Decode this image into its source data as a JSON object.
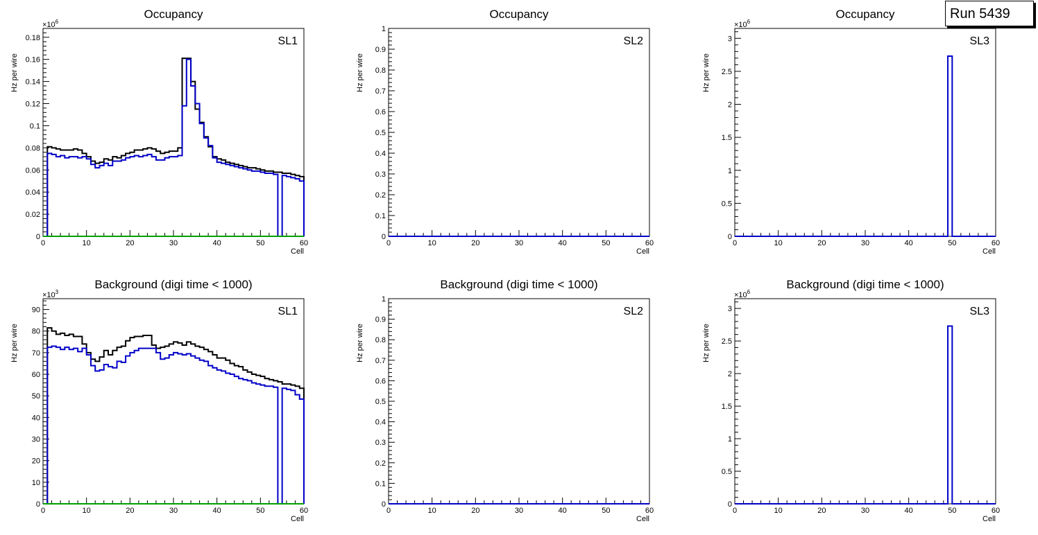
{
  "run_label": "Run 5439",
  "colors": {
    "frame": "#000000",
    "series_total": "#000000",
    "series_blue": "#0000c8",
    "series_green": "#00a000"
  },
  "chart_data": [
    {
      "id": "occ-sl1",
      "type": "step",
      "title": "Occupancy",
      "label": "SL1",
      "xlabel": "Cell",
      "ylabel": "Hz per wire",
      "exponent": "6",
      "xlim": [
        0,
        60
      ],
      "ylim": [
        0,
        0.188
      ],
      "xticks": [
        0,
        10,
        20,
        30,
        40,
        50,
        60
      ],
      "yticks": [
        0,
        0.02,
        0.04,
        0.06,
        0.08,
        0.1,
        0.12,
        0.14,
        0.16,
        0.18
      ],
      "ytick_labels": [
        "0",
        "0.02",
        "0.04",
        "0.06",
        "0.08",
        "0.1",
        "0.12",
        "0.14",
        "0.16",
        "0.18"
      ],
      "bin_width": 1,
      "series": [
        {
          "name": "total",
          "color": "#000000",
          "values": [
            0,
            0.081,
            0.08,
            0.079,
            0.078,
            0.078,
            0.078,
            0.079,
            0.078,
            0.075,
            0.072,
            0.068,
            0.066,
            0.067,
            0.07,
            0.069,
            0.072,
            0.071,
            0.073,
            0.075,
            0.076,
            0.078,
            0.078,
            0.079,
            0.08,
            0.079,
            0.077,
            0.075,
            0.076,
            0.077,
            0.077,
            0.08,
            0.161,
            0.161,
            0.14,
            0.115,
            0.103,
            0.09,
            0.081,
            0.072,
            0.07,
            0.069,
            0.067,
            0.066,
            0.065,
            0.064,
            0.063,
            0.062,
            0.062,
            0.061,
            0.06,
            0.059,
            0.059,
            0.058,
            0.058,
            0.057,
            0.057,
            0.056,
            0.055,
            0.054
          ]
        },
        {
          "name": "blue",
          "color": "#0000c8",
          "values": [
            0,
            0.075,
            0.074,
            0.072,
            0.073,
            0.071,
            0.072,
            0.072,
            0.071,
            0.072,
            0.07,
            0.065,
            0.062,
            0.064,
            0.066,
            0.064,
            0.068,
            0.068,
            0.069,
            0.071,
            0.072,
            0.073,
            0.072,
            0.073,
            0.074,
            0.072,
            0.069,
            0.069,
            0.071,
            0.072,
            0.072,
            0.073,
            0.118,
            0.16,
            0.136,
            0.12,
            0.102,
            0.089,
            0.082,
            0.071,
            0.067,
            0.066,
            0.065,
            0.064,
            0.063,
            0.062,
            0.061,
            0.06,
            0.059,
            0.059,
            0.058,
            0.057,
            0.057,
            0.056,
            0.0,
            0.055,
            0.054,
            0.053,
            0.052,
            0.05
          ]
        },
        {
          "name": "green",
          "color": "#00a000",
          "values": "zeros"
        }
      ]
    },
    {
      "id": "occ-sl2",
      "type": "step",
      "title": "Occupancy",
      "label": "SL2",
      "xlabel": "Cell",
      "ylabel": "Hz per wire",
      "exponent": "",
      "xlim": [
        0,
        60
      ],
      "ylim": [
        0,
        1.0
      ],
      "xticks": [
        0,
        10,
        20,
        30,
        40,
        50,
        60
      ],
      "yticks": [
        0,
        0.1,
        0.2,
        0.3,
        0.4,
        0.5,
        0.6,
        0.7,
        0.8,
        0.9,
        1
      ],
      "ytick_labels": [
        "0",
        "0.1",
        "0.2",
        "0.3",
        "0.4",
        "0.5",
        "0.6",
        "0.7",
        "0.8",
        "0.9",
        "1"
      ],
      "bin_width": 1,
      "series": [
        {
          "name": "blue",
          "color": "#0000c8",
          "values": "zeros"
        }
      ]
    },
    {
      "id": "occ-sl3",
      "type": "step",
      "title": "Occupancy",
      "label": "SL3",
      "xlabel": "Cell",
      "ylabel": "Hz per wire",
      "exponent": "6",
      "xlim": [
        0,
        60
      ],
      "ylim": [
        0,
        3.15
      ],
      "xticks": [
        0,
        10,
        20,
        30,
        40,
        50,
        60
      ],
      "yticks": [
        0,
        0.5,
        1,
        1.5,
        2,
        2.5,
        3
      ],
      "ytick_labels": [
        "0",
        "0.5",
        "1",
        "1.5",
        "2",
        "2.5",
        "3"
      ],
      "bin_width": 1,
      "series": [
        {
          "name": "blue",
          "color": "#0000c8",
          "spike": {
            "bin": 49,
            "value": 2.73
          },
          "values": "zeros"
        }
      ]
    },
    {
      "id": "bkg-sl1",
      "type": "step",
      "title": "Background (digi time < 1000)",
      "label": "SL1",
      "xlabel": "Cell",
      "ylabel": "Hz per wire",
      "exponent": "3",
      "xlim": [
        0,
        60
      ],
      "ylim": [
        0,
        95
      ],
      "xticks": [
        0,
        10,
        20,
        30,
        40,
        50,
        60
      ],
      "yticks": [
        0,
        10,
        20,
        30,
        40,
        50,
        60,
        70,
        80,
        90
      ],
      "ytick_labels": [
        "0",
        "10",
        "20",
        "30",
        "40",
        "50",
        "60",
        "70",
        "80",
        "90"
      ],
      "bin_width": 1,
      "series": [
        {
          "name": "total",
          "color": "#000000",
          "values": [
            0,
            81.5,
            80,
            78.5,
            79,
            78,
            78.5,
            77.5,
            77.5,
            74,
            70,
            67,
            66,
            68,
            71,
            69,
            71,
            72.5,
            73,
            75.5,
            77,
            77.5,
            77.5,
            78,
            78,
            73.5,
            72,
            72.5,
            73,
            74,
            75,
            74.5,
            73.5,
            75,
            74,
            73,
            72.5,
            71.5,
            70.5,
            69,
            67.5,
            67.5,
            66.5,
            65,
            64,
            63.5,
            62,
            61,
            60,
            59.5,
            59,
            58,
            57.5,
            57,
            56.5,
            55.5,
            55.5,
            55,
            54.5,
            53.5
          ]
        },
        {
          "name": "blue",
          "color": "#0000c8",
          "values": [
            0,
            72.5,
            73,
            72.5,
            71.5,
            72.5,
            71.5,
            72,
            70.5,
            72,
            69,
            64,
            61.5,
            62,
            64.5,
            63.5,
            63,
            66,
            65.5,
            68.5,
            70,
            71,
            72,
            72,
            72,
            72,
            70,
            67,
            67.5,
            69,
            70,
            69.5,
            69,
            69.5,
            68.5,
            67.5,
            66.5,
            66,
            64,
            63,
            62,
            61.5,
            60.5,
            60,
            59,
            58,
            57.5,
            57,
            56,
            55.5,
            55,
            54.5,
            54.5,
            54,
            0,
            53.5,
            53,
            52.5,
            50.5,
            48.5
          ]
        },
        {
          "name": "green",
          "color": "#00a000",
          "values": "zeros"
        }
      ]
    },
    {
      "id": "bkg-sl2",
      "type": "step",
      "title": "Background (digi time < 1000)",
      "label": "SL2",
      "xlabel": "Cell",
      "ylabel": "Hz per wire",
      "exponent": "",
      "xlim": [
        0,
        60
      ],
      "ylim": [
        0,
        1.0
      ],
      "xticks": [
        0,
        10,
        20,
        30,
        40,
        50,
        60
      ],
      "yticks": [
        0,
        0.1,
        0.2,
        0.3,
        0.4,
        0.5,
        0.6,
        0.7,
        0.8,
        0.9,
        1
      ],
      "ytick_labels": [
        "0",
        "0.1",
        "0.2",
        "0.3",
        "0.4",
        "0.5",
        "0.6",
        "0.7",
        "0.8",
        "0.9",
        "1"
      ],
      "bin_width": 1,
      "series": [
        {
          "name": "blue",
          "color": "#0000c8",
          "values": "zeros"
        }
      ]
    },
    {
      "id": "bkg-sl3",
      "type": "step",
      "title": "Background (digi time < 1000)",
      "label": "SL3",
      "xlabel": "Cell",
      "ylabel": "Hz per wire",
      "exponent": "6",
      "xlim": [
        0,
        60
      ],
      "ylim": [
        0,
        3.15
      ],
      "xticks": [
        0,
        10,
        20,
        30,
        40,
        50,
        60
      ],
      "yticks": [
        0,
        0.5,
        1,
        1.5,
        2,
        2.5,
        3
      ],
      "ytick_labels": [
        "0",
        "0.5",
        "1",
        "1.5",
        "2",
        "2.5",
        "3"
      ],
      "bin_width": 1,
      "series": [
        {
          "name": "blue",
          "color": "#0000c8",
          "spike": {
            "bin": 49,
            "value": 2.73
          },
          "values": "zeros"
        }
      ]
    }
  ]
}
